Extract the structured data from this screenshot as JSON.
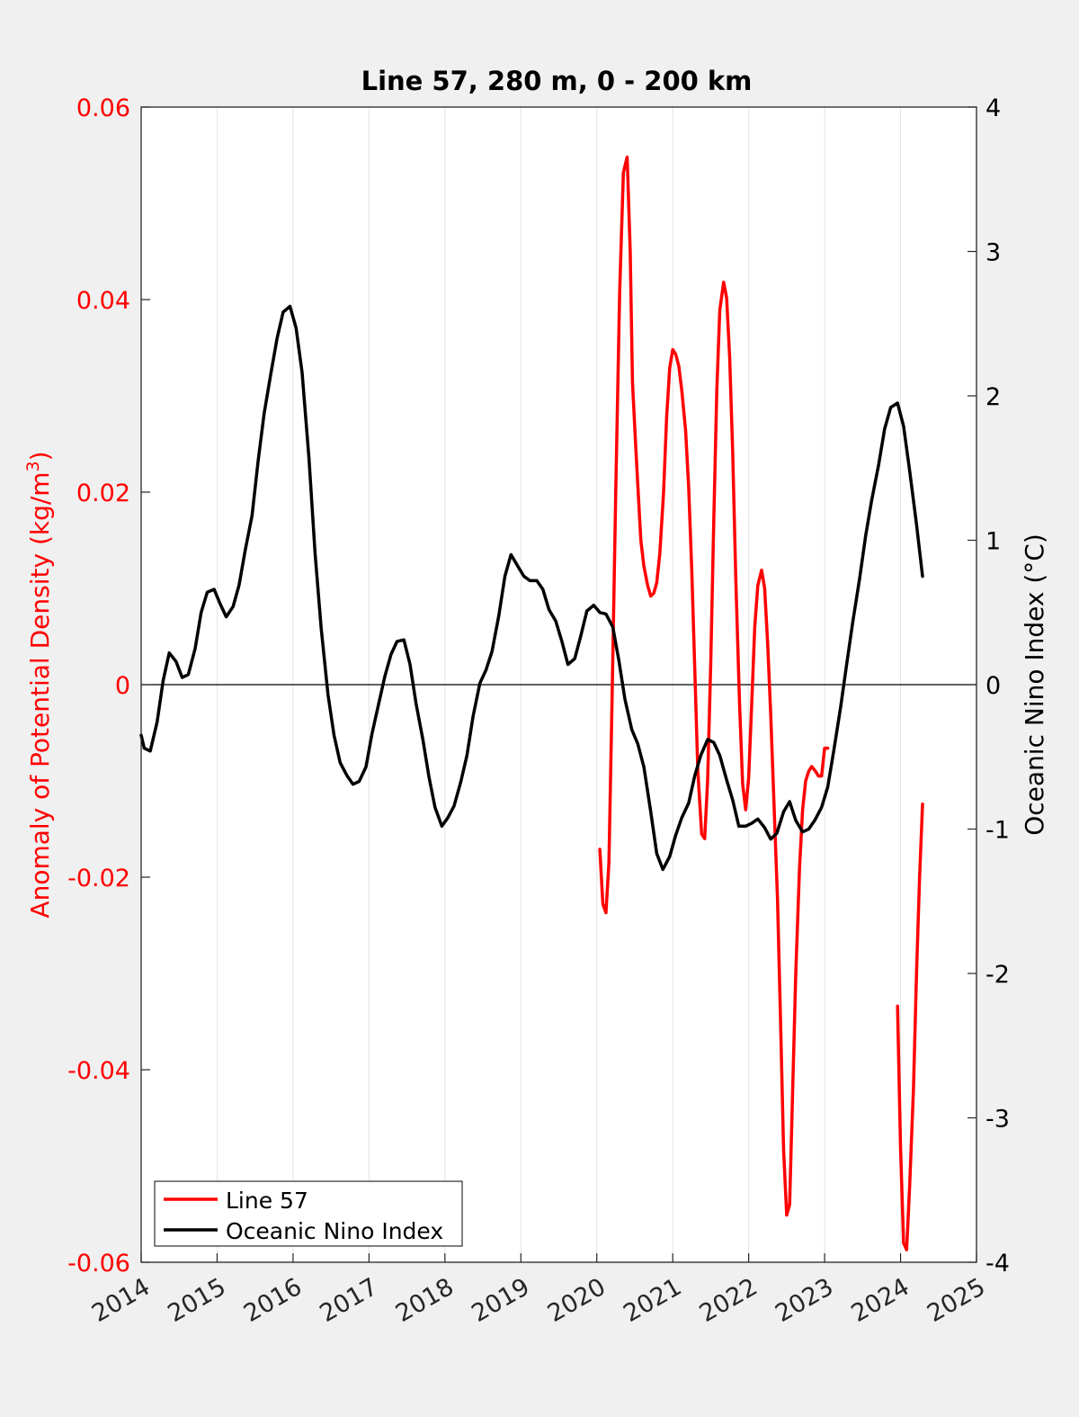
{
  "chart_data": {
    "type": "line",
    "title": "Line 57, 280 m, 0 - 200 km",
    "ylabel_left": "Anomaly of Potential Density (kg/m³)",
    "ylabel_left_prefix": "Anomaly of Potential Density (kg/m",
    "ylabel_left_sup": "3",
    "ylabel_left_suffix": ")",
    "ylabel_right": "Oceanic Nino Index (°C)",
    "xlabel": "",
    "xlim": [
      2014,
      2025
    ],
    "ylim_left": [
      -0.06,
      0.06
    ],
    "ylim_right": [
      -4,
      4
    ],
    "x_tick_labels": [
      "2014",
      "2015",
      "2016",
      "2017",
      "2018",
      "2019",
      "2020",
      "2021",
      "2022",
      "2023",
      "2024",
      "2025"
    ],
    "left_tick_labels": [
      {
        "value": 0.06,
        "label": "0.06"
      },
      {
        "value": 0.04,
        "label": "0.04"
      },
      {
        "value": 0.02,
        "label": "0.02"
      },
      {
        "value": 0,
        "label": "0"
      },
      {
        "value": -0.02,
        "label": "-0.02"
      },
      {
        "value": -0.04,
        "label": "-0.04"
      },
      {
        "value": -0.06,
        "label": "-0.06"
      }
    ],
    "right_tick_labels": [
      {
        "value": 4,
        "label": "4"
      },
      {
        "value": 3,
        "label": "3"
      },
      {
        "value": 2,
        "label": "2"
      },
      {
        "value": 1,
        "label": "1"
      },
      {
        "value": 0,
        "label": "0"
      },
      {
        "value": -1,
        "label": "-1"
      },
      {
        "value": -2,
        "label": "-2"
      },
      {
        "value": -3,
        "label": "-3"
      },
      {
        "value": -4,
        "label": "-4"
      }
    ],
    "grid": "vertical",
    "legend_position": "bottom-left",
    "colors": {
      "line57": "#ff0000",
      "oni": "#000000",
      "left_axis": "#ff0000",
      "right_axis": "#000000",
      "zero_line": "#000000"
    },
    "series": [
      {
        "name": "Line 57",
        "axis": "left",
        "color": "#ff0000",
        "segments": [
          {
            "x": [
              2020.04,
              2020.08,
              2020.12,
              2020.16,
              2020.2,
              2020.25,
              2020.3,
              2020.35,
              2020.4,
              2020.44,
              2020.47,
              2020.52,
              2020.58,
              2020.62,
              2020.67,
              2020.71,
              2020.75,
              2020.79,
              2020.83,
              2020.88,
              2020.92,
              2020.96,
              2021.0,
              2021.04,
              2021.08,
              2021.12,
              2021.17,
              2021.21,
              2021.25,
              2021.29,
              2021.33,
              2021.38,
              2021.42,
              2021.46,
              2021.5,
              2021.54,
              2021.58,
              2021.62,
              2021.67,
              2021.71,
              2021.75,
              2021.79,
              2021.83,
              2021.88,
              2021.92,
              2021.96,
              2022.0,
              2022.04,
              2022.08,
              2022.12,
              2022.17,
              2022.21,
              2022.25,
              2022.29,
              2022.33,
              2022.38,
              2022.42,
              2022.46,
              2022.5,
              2022.54,
              2022.58,
              2022.62,
              2022.67,
              2022.71,
              2022.75,
              2022.79,
              2022.83,
              2022.88,
              2022.92,
              2022.96,
              2023.0,
              2023.04
            ],
            "y": [
              -0.0171,
              -0.0228,
              -0.0237,
              -0.0185,
              -0.0021,
              0.02,
              0.0406,
              0.0532,
              0.0548,
              0.045,
              0.0314,
              0.0237,
              0.015,
              0.0123,
              0.0103,
              0.0092,
              0.0095,
              0.0106,
              0.0136,
              0.02,
              0.0278,
              0.0329,
              0.0348,
              0.0343,
              0.0331,
              0.0305,
              0.0264,
              0.0205,
              0.012,
              0.0016,
              -0.009,
              -0.0155,
              -0.016,
              -0.0099,
              0.002,
              0.017,
              0.0306,
              0.0389,
              0.0418,
              0.0402,
              0.034,
              0.024,
              0.011,
              -0.002,
              -0.0103,
              -0.013,
              -0.0097,
              -0.002,
              0.006,
              0.0103,
              0.0119,
              0.01,
              0.0042,
              -0.003,
              -0.0116,
              -0.0223,
              -0.035,
              -0.0484,
              -0.0551,
              -0.054,
              -0.042,
              -0.03,
              -0.019,
              -0.013,
              -0.01,
              -0.009,
              -0.0085,
              -0.009,
              -0.0095,
              -0.0095,
              -0.0066,
              -0.0066
            ]
          },
          {
            "x": [
              2023.96,
              2024.0,
              2024.04,
              2024.08,
              2024.12,
              2024.17,
              2024.21,
              2024.25,
              2024.29
            ],
            "y": [
              -0.0334,
              -0.048,
              -0.058,
              -0.0587,
              -0.052,
              -0.042,
              -0.03,
              -0.02,
              -0.0124
            ]
          }
        ]
      },
      {
        "name": "Oceanic Nino Index",
        "axis": "right",
        "color": "#000000",
        "x": [
          2014.0,
          2014.04,
          2014.12,
          2014.21,
          2014.29,
          2014.37,
          2014.46,
          2014.54,
          2014.62,
          2014.71,
          2014.79,
          2014.87,
          2014.96,
          2015.04,
          2015.12,
          2015.21,
          2015.29,
          2015.37,
          2015.46,
          2015.54,
          2015.62,
          2015.71,
          2015.79,
          2015.87,
          2015.96,
          2016.04,
          2016.12,
          2016.21,
          2016.29,
          2016.37,
          2016.46,
          2016.54,
          2016.62,
          2016.71,
          2016.79,
          2016.87,
          2016.96,
          2017.04,
          2017.12,
          2017.21,
          2017.29,
          2017.37,
          2017.46,
          2017.54,
          2017.62,
          2017.71,
          2017.79,
          2017.87,
          2017.96,
          2018.04,
          2018.12,
          2018.21,
          2018.29,
          2018.37,
          2018.46,
          2018.54,
          2018.62,
          2018.71,
          2018.79,
          2018.87,
          2018.96,
          2019.04,
          2019.12,
          2019.21,
          2019.29,
          2019.37,
          2019.46,
          2019.54,
          2019.62,
          2019.71,
          2019.79,
          2019.87,
          2019.96,
          2020.04,
          2020.12,
          2020.21,
          2020.29,
          2020.37,
          2020.46,
          2020.54,
          2020.62,
          2020.71,
          2020.79,
          2020.87,
          2020.96,
          2021.04,
          2021.12,
          2021.21,
          2021.29,
          2021.37,
          2021.46,
          2021.54,
          2021.62,
          2021.71,
          2021.79,
          2021.87,
          2021.96,
          2022.04,
          2022.12,
          2022.21,
          2022.29,
          2022.37,
          2022.46,
          2022.54,
          2022.62,
          2022.71,
          2022.79,
          2022.87,
          2022.96,
          2023.04,
          2023.12,
          2023.21,
          2023.29,
          2023.37,
          2023.46,
          2023.54,
          2023.62,
          2023.71,
          2023.79,
          2023.87,
          2023.96,
          2024.04,
          2024.12,
          2024.21,
          2024.29
        ],
        "y": [
          -0.35,
          -0.44,
          -0.46,
          -0.26,
          0.03,
          0.22,
          0.16,
          0.05,
          0.07,
          0.25,
          0.5,
          0.64,
          0.66,
          0.56,
          0.47,
          0.54,
          0.69,
          0.93,
          1.17,
          1.55,
          1.88,
          2.16,
          2.4,
          2.58,
          2.62,
          2.47,
          2.16,
          1.57,
          0.91,
          0.39,
          -0.07,
          -0.35,
          -0.54,
          -0.63,
          -0.69,
          -0.67,
          -0.57,
          -0.34,
          -0.15,
          0.06,
          0.21,
          0.3,
          0.31,
          0.14,
          -0.13,
          -0.38,
          -0.64,
          -0.85,
          -0.98,
          -0.92,
          -0.84,
          -0.67,
          -0.49,
          -0.22,
          0.01,
          0.1,
          0.23,
          0.48,
          0.75,
          0.9,
          0.82,
          0.75,
          0.72,
          0.72,
          0.66,
          0.52,
          0.44,
          0.3,
          0.14,
          0.18,
          0.34,
          0.51,
          0.55,
          0.5,
          0.49,
          0.4,
          0.17,
          -0.1,
          -0.31,
          -0.41,
          -0.57,
          -0.88,
          -1.17,
          -1.28,
          -1.19,
          -1.04,
          -0.92,
          -0.82,
          -0.63,
          -0.49,
          -0.38,
          -0.4,
          -0.49,
          -0.66,
          -0.8,
          -0.98,
          -0.98,
          -0.96,
          -0.93,
          -0.99,
          -1.07,
          -1.03,
          -0.88,
          -0.81,
          -0.94,
          -1.02,
          -1.0,
          -0.94,
          -0.85,
          -0.71,
          -0.46,
          -0.16,
          0.14,
          0.43,
          0.73,
          1.03,
          1.28,
          1.52,
          1.77,
          1.92,
          1.95,
          1.79,
          1.48,
          1.11,
          0.75
        ]
      }
    ],
    "legend": [
      "Line 57",
      "Oceanic Nino Index"
    ]
  }
}
